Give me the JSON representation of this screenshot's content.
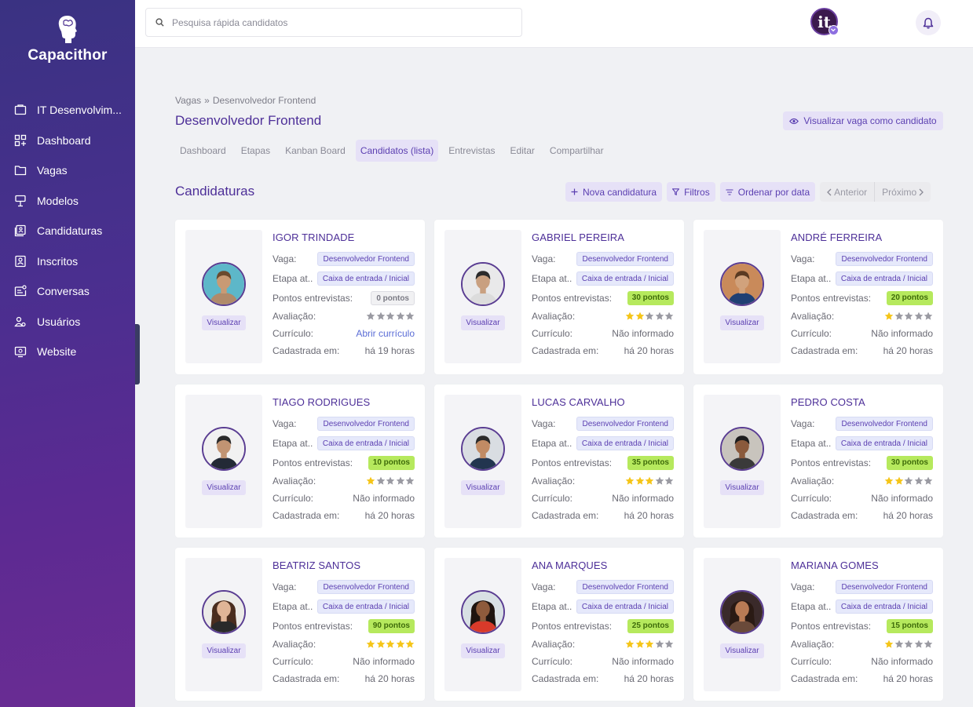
{
  "app": {
    "name": "Capacithor"
  },
  "sidebar": {
    "items": [
      {
        "label": "IT Desenvolvim...",
        "icon": "company-icon"
      },
      {
        "label": "Dashboard",
        "icon": "dashboard-icon"
      },
      {
        "label": "Vagas",
        "icon": "folder-icon"
      },
      {
        "label": "Modelos",
        "icon": "template-icon"
      },
      {
        "label": "Candidaturas",
        "icon": "applications-icon"
      },
      {
        "label": "Inscritos",
        "icon": "subscribers-icon"
      },
      {
        "label": "Conversas",
        "icon": "chat-icon"
      },
      {
        "label": "Usuários",
        "icon": "users-icon"
      },
      {
        "label": "Website",
        "icon": "website-icon"
      }
    ]
  },
  "topbar": {
    "search_placeholder": "Pesquisa rápida candidatos",
    "avatar_initials": "it"
  },
  "breadcrumb": {
    "parent": "Vagas",
    "separator": "»",
    "current": "Desenvolvedor Frontend"
  },
  "page": {
    "title": "Desenvolvedor Frontend",
    "view_as_candidate": "Visualizar vaga como candidato",
    "tabs": [
      "Dashboard",
      "Etapas",
      "Kanban Board",
      "Candidatos (lista)",
      "Entrevistas",
      "Editar",
      "Compartilhar"
    ],
    "active_tab": 3,
    "section_title": "Candidaturas"
  },
  "toolbar": {
    "new_application": "Nova candidatura",
    "filters": "Filtros",
    "sort": "Ordenar por data",
    "prev": "Anterior",
    "next": "Próximo"
  },
  "labels": {
    "job": "Vaga:",
    "stage": "Etapa at...",
    "interview_points": "Pontos entrevistas:",
    "rating": "Avaliação:",
    "resume": "Currículo:",
    "registered": "Cadastrada em:",
    "view": "Visualizar"
  },
  "colors": {
    "accent": "#4d2f98",
    "pill_bg": "#e6e1f7",
    "score_green": "#b6e95d",
    "star": "#f5c518"
  },
  "candidates": [
    {
      "name": "IGOR TRINDADE",
      "job": "Desenvolvedor Frontend",
      "stage": "Caixa de entrada / Inicial",
      "points": "0 pontos",
      "rating": 0,
      "resume": "Abrir currículo",
      "resume_link": true,
      "registered": "há 19 horas"
    },
    {
      "name": "GABRIEL PEREIRA",
      "job": "Desenvolvedor Frontend",
      "stage": "Caixa de entrada / Inicial",
      "points": "30 pontos",
      "rating": 2,
      "resume": "Não informado",
      "resume_link": false,
      "registered": "há 20 horas"
    },
    {
      "name": "ANDRÉ FERREIRA",
      "job": "Desenvolvedor Frontend",
      "stage": "Caixa de entrada / Inicial",
      "points": "20 pontos",
      "rating": 1,
      "resume": "Não informado",
      "resume_link": false,
      "registered": "há 20 horas"
    },
    {
      "name": "TIAGO RODRIGUES",
      "job": "Desenvolvedor Frontend",
      "stage": "Caixa de entrada / Inicial",
      "points": "10 pontos",
      "rating": 1,
      "resume": "Não informado",
      "resume_link": false,
      "registered": "há 20 horas"
    },
    {
      "name": "LUCAS CARVALHO",
      "job": "Desenvolvedor Frontend",
      "stage": "Caixa de entrada / Inicial",
      "points": "35 pontos",
      "rating": 3,
      "resume": "Não informado",
      "resume_link": false,
      "registered": "há 20 horas"
    },
    {
      "name": "PEDRO COSTA",
      "job": "Desenvolvedor Frontend",
      "stage": "Caixa de entrada / Inicial",
      "points": "30 pontos",
      "rating": 2,
      "resume": "Não informado",
      "resume_link": false,
      "registered": "há 20 horas"
    },
    {
      "name": "BEATRIZ SANTOS",
      "job": "Desenvolvedor Frontend",
      "stage": "Caixa de entrada / Inicial",
      "points": "90 pontos",
      "rating": 5,
      "resume": "Não informado",
      "resume_link": false,
      "registered": "há 20 horas"
    },
    {
      "name": "ANA MARQUES",
      "job": "Desenvolvedor Frontend",
      "stage": "Caixa de entrada / Inicial",
      "points": "25 pontos",
      "rating": 3,
      "resume": "Não informado",
      "resume_link": false,
      "registered": "há 20 horas"
    },
    {
      "name": "MARIANA GOMES",
      "job": "Desenvolvedor Frontend",
      "stage": "Caixa de entrada / Inicial",
      "points": "15 pontos",
      "rating": 1,
      "resume": "Não informado",
      "resume_link": false,
      "registered": "há 20 horas"
    }
  ]
}
